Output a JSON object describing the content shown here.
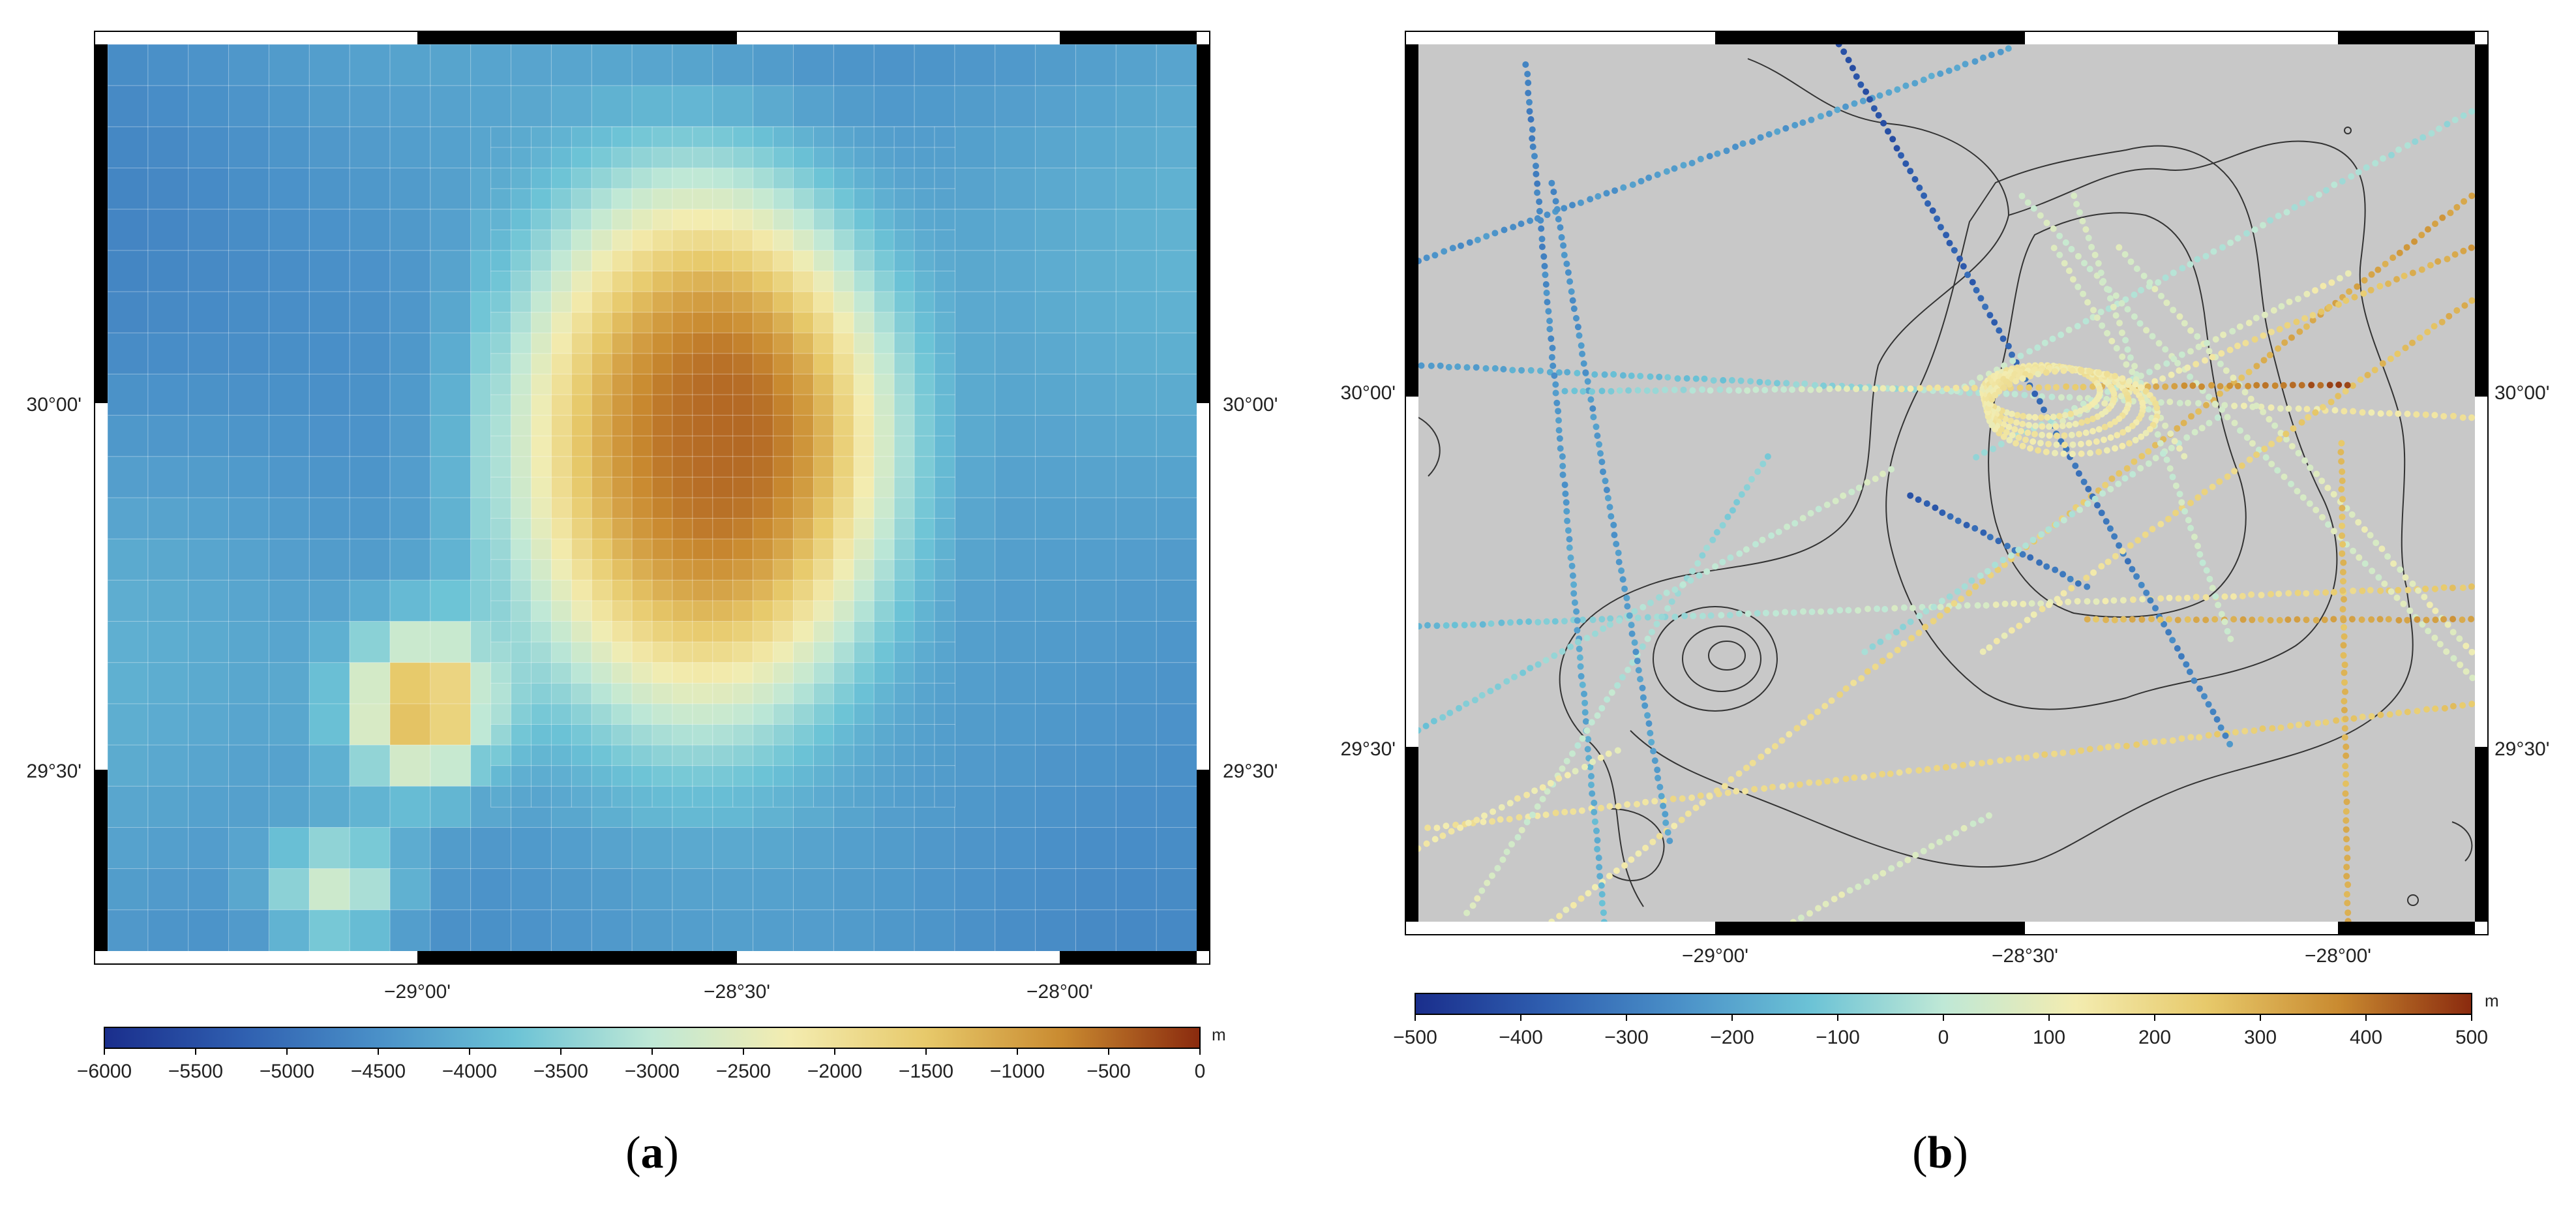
{
  "panel_a": {
    "label_open": "(",
    "label_letter": "a",
    "label_close": ")",
    "x_ticks": [
      "−29°00'",
      "−28°30'",
      "−28°00'"
    ],
    "y_ticks_left": [
      "30°00'",
      "29°30'"
    ],
    "y_ticks_right": [
      "30°00'",
      "29°30'"
    ],
    "colorbar": {
      "unit": "m",
      "ticks": [
        "−6000",
        "−5500",
        "−5000",
        "−4500",
        "−4000",
        "−3500",
        "−3000",
        "−2500",
        "−2000",
        "−1500",
        "−1000",
        "−500",
        "0"
      ],
      "colors": [
        "#1a2e8c",
        "#2f5fb0",
        "#4a90c8",
        "#6cc3d6",
        "#bfe8d6",
        "#f3ecb0",
        "#e7c96a",
        "#c98a30",
        "#8a2a0e"
      ]
    }
  },
  "panel_b": {
    "label_open": "(",
    "label_letter": "b",
    "label_close": ")",
    "x_ticks": [
      "−29°00'",
      "−28°30'",
      "−28°00'"
    ],
    "y_ticks_left": [
      "30°00'",
      "29°30'"
    ],
    "y_ticks_right": [
      "30°00'",
      "29°30'"
    ],
    "colorbar": {
      "unit": "m",
      "ticks": [
        "−500",
        "−400",
        "−300",
        "−200",
        "−100",
        "0",
        "100",
        "200",
        "300",
        "400",
        "500"
      ],
      "colors": [
        "#1a2e8c",
        "#2f5fb0",
        "#4a90c8",
        "#6cc3d6",
        "#bfe8d6",
        "#f3ecb0",
        "#e7c96a",
        "#c98a30",
        "#8a2a0e"
      ]
    },
    "background_color": "#c8c8c8"
  }
}
